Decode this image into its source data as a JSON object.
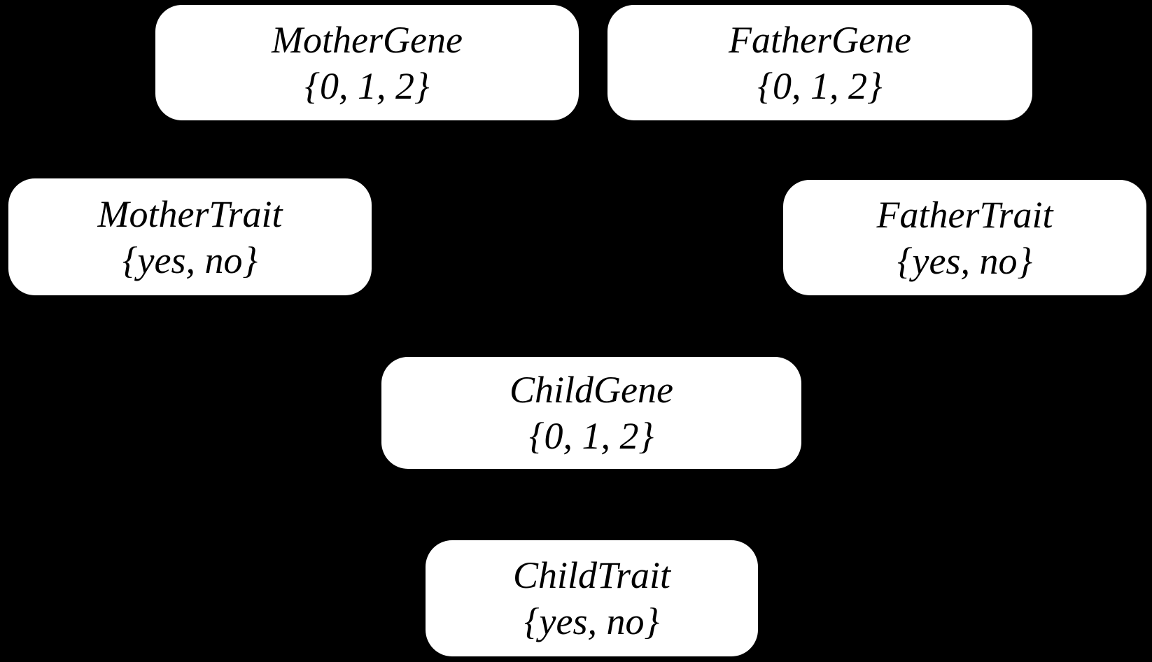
{
  "diagram": {
    "colors": {
      "background": "#000000",
      "node_fill": "#ffffff",
      "node_text": "#000000"
    },
    "nodes": [
      {
        "id": "mother-gene",
        "title": "MotherGene",
        "domain": "{0, 1, 2}"
      },
      {
        "id": "father-gene",
        "title": "FatherGene",
        "domain": "{0, 1, 2}"
      },
      {
        "id": "mother-trait",
        "title": "MotherTrait",
        "domain": "{yes, no}"
      },
      {
        "id": "father-trait",
        "title": "FatherTrait",
        "domain": "{yes, no}"
      },
      {
        "id": "child-gene",
        "title": "ChildGene",
        "domain": "{0, 1, 2}"
      },
      {
        "id": "child-trait",
        "title": "ChildTrait",
        "domain": "{yes, no}"
      }
    ]
  }
}
